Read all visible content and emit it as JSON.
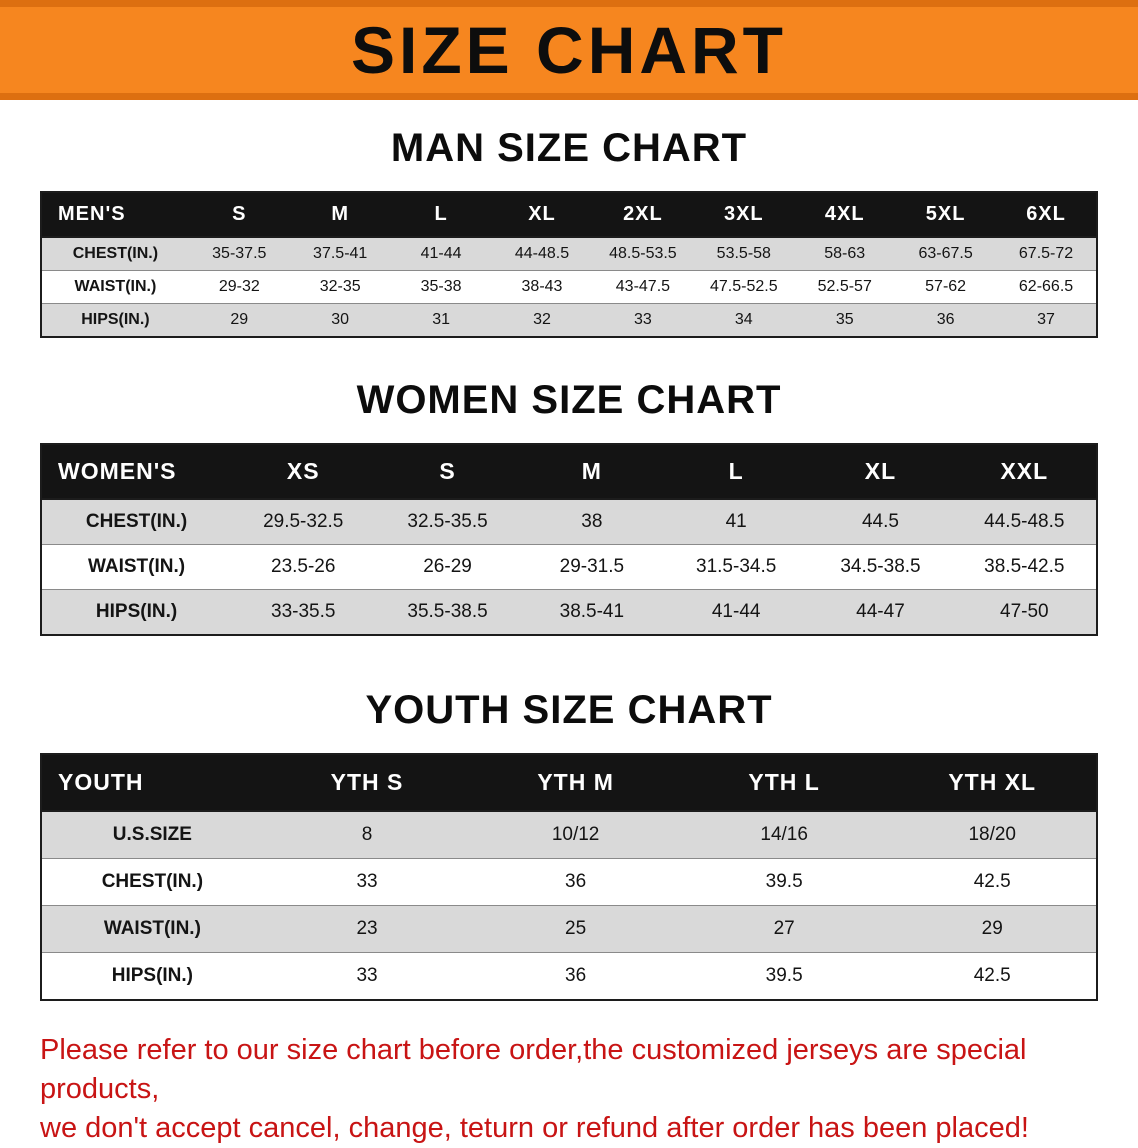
{
  "banner": {
    "title": "SIZE CHART"
  },
  "colors": {
    "banner_bg": "#f6861f",
    "banner_edge": "#dd6f10",
    "header_bg": "#141414",
    "row_alt": "#d9d9d9",
    "footer_text": "#c81414"
  },
  "sections": [
    {
      "id": "men",
      "heading": "MAN SIZE CHART",
      "table": {
        "header": [
          "MEN'S",
          "S",
          "M",
          "L",
          "XL",
          "2XL",
          "3XL",
          "4XL",
          "5XL",
          "6XL"
        ],
        "rows": [
          [
            "CHEST(IN.)",
            "35-37.5",
            "37.5-41",
            "41-44",
            "44-48.5",
            "48.5-53.5",
            "53.5-58",
            "58-63",
            "63-67.5",
            "67.5-72"
          ],
          [
            "WAIST(IN.)",
            "29-32",
            "32-35",
            "35-38",
            "38-43",
            "43-47.5",
            "47.5-52.5",
            "52.5-57",
            "57-62",
            "62-66.5"
          ],
          [
            "HIPS(IN.)",
            "29",
            "30",
            "31",
            "32",
            "33",
            "34",
            "35",
            "36",
            "37"
          ]
        ]
      }
    },
    {
      "id": "women",
      "heading": "WOMEN SIZE CHART",
      "table": {
        "header": [
          "WOMEN'S",
          "XS",
          "S",
          "M",
          "L",
          "XL",
          "XXL"
        ],
        "rows": [
          [
            "CHEST(IN.)",
            "29.5-32.5",
            "32.5-35.5",
            "38",
            "41",
            "44.5",
            "44.5-48.5"
          ],
          [
            "WAIST(IN.)",
            "23.5-26",
            "26-29",
            "29-31.5",
            "31.5-34.5",
            "34.5-38.5",
            "38.5-42.5"
          ],
          [
            "HIPS(IN.)",
            "33-35.5",
            "35.5-38.5",
            "38.5-41",
            "41-44",
            "44-47",
            "47-50"
          ]
        ]
      }
    },
    {
      "id": "youth",
      "heading": "YOUTH SIZE CHART",
      "table": {
        "header": [
          "YOUTH",
          "YTH S",
          "YTH M",
          "YTH L",
          "YTH XL"
        ],
        "rows": [
          [
            "U.S.SIZE",
            "8",
            "10/12",
            "14/16",
            "18/20"
          ],
          [
            "CHEST(IN.)",
            "33",
            "36",
            "39.5",
            "42.5"
          ],
          [
            "WAIST(IN.)",
            "23",
            "25",
            "27",
            "29"
          ],
          [
            "HIPS(IN.)",
            "33",
            "36",
            "39.5",
            "42.5"
          ]
        ]
      }
    }
  ],
  "footer": {
    "line1": "Please refer to our size chart before order,the customized jerseys are special products,",
    "line2": "we don't accept cancel, change, teturn or refund after order has been placed!"
  }
}
